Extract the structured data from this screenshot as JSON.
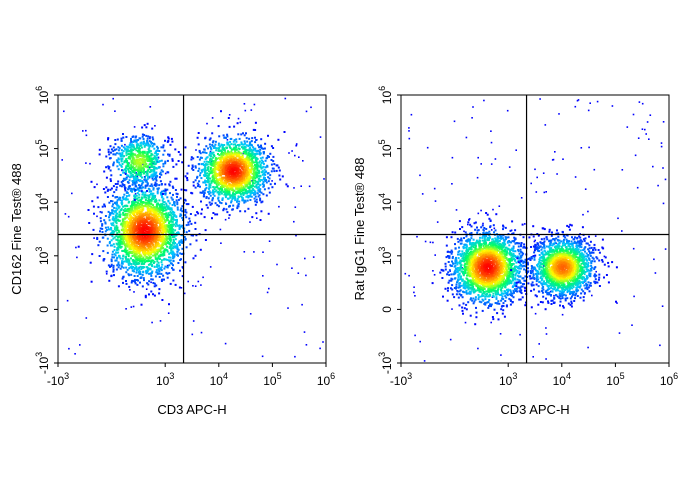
{
  "chart_data": [
    {
      "type": "scatter",
      "subtype": "flow-cytometry-pseudocolor-density",
      "xlabel": "CD3 APC-H",
      "ylabel": "CD162 Fine Test® 488",
      "x_scale": "biexponential",
      "y_scale": "biexponential",
      "xlim": [
        -1000,
        1000000
      ],
      "ylim": [
        -1000,
        1000000
      ],
      "x_ticks": [
        {
          "base": "-10",
          "exp": "3"
        },
        {
          "base": "10",
          "exp": "3"
        },
        {
          "base": "10",
          "exp": "4"
        },
        {
          "base": "10",
          "exp": "5"
        },
        {
          "base": "10",
          "exp": "6"
        }
      ],
      "y_ticks": [
        {
          "base": "-10",
          "exp": "3"
        },
        {
          "base": "0",
          "exp": ""
        },
        {
          "base": "10",
          "exp": "3"
        },
        {
          "base": "10",
          "exp": "4"
        },
        {
          "base": "10",
          "exp": "5"
        },
        {
          "base": "10",
          "exp": "6"
        }
      ],
      "quadrant_gate": {
        "x": 2200,
        "y": 2500
      },
      "populations": [
        {
          "x_center": 600,
          "y_center": 3000,
          "relative_density": "high"
        },
        {
          "x_center": 18000,
          "y_center": 40000,
          "relative_density": "high"
        },
        {
          "x_center": 500,
          "y_center": 60000,
          "relative_density": "medium"
        }
      ],
      "colormap": [
        "#0000ff",
        "#00c8ff",
        "#00ff60",
        "#ffff00",
        "#ff8000",
        "#ff0000"
      ]
    },
    {
      "type": "scatter",
      "subtype": "flow-cytometry-pseudocolor-density",
      "xlabel": "CD3 APC-H",
      "ylabel": "Rat IgG1 Fine Test® 488",
      "x_scale": "biexponential",
      "y_scale": "biexponential",
      "xlim": [
        -1000,
        1000000
      ],
      "ylim": [
        -1000,
        1000000
      ],
      "x_ticks": [
        {
          "base": "-10",
          "exp": "3"
        },
        {
          "base": "10",
          "exp": "3"
        },
        {
          "base": "10",
          "exp": "4"
        },
        {
          "base": "10",
          "exp": "5"
        },
        {
          "base": "10",
          "exp": "6"
        }
      ],
      "y_ticks": [
        {
          "base": "-10",
          "exp": "3"
        },
        {
          "base": "0",
          "exp": ""
        },
        {
          "base": "10",
          "exp": "3"
        },
        {
          "base": "10",
          "exp": "4"
        },
        {
          "base": "10",
          "exp": "5"
        },
        {
          "base": "10",
          "exp": "6"
        }
      ],
      "quadrant_gate": {
        "x": 2200,
        "y": 2500
      },
      "populations": [
        {
          "x_center": 600,
          "y_center": 800,
          "relative_density": "high"
        },
        {
          "x_center": 10000,
          "y_center": 800,
          "relative_density": "high"
        }
      ],
      "colormap": [
        "#0000ff",
        "#00c8ff",
        "#00ff60",
        "#ffff00",
        "#ff8000",
        "#ff0000"
      ]
    }
  ]
}
